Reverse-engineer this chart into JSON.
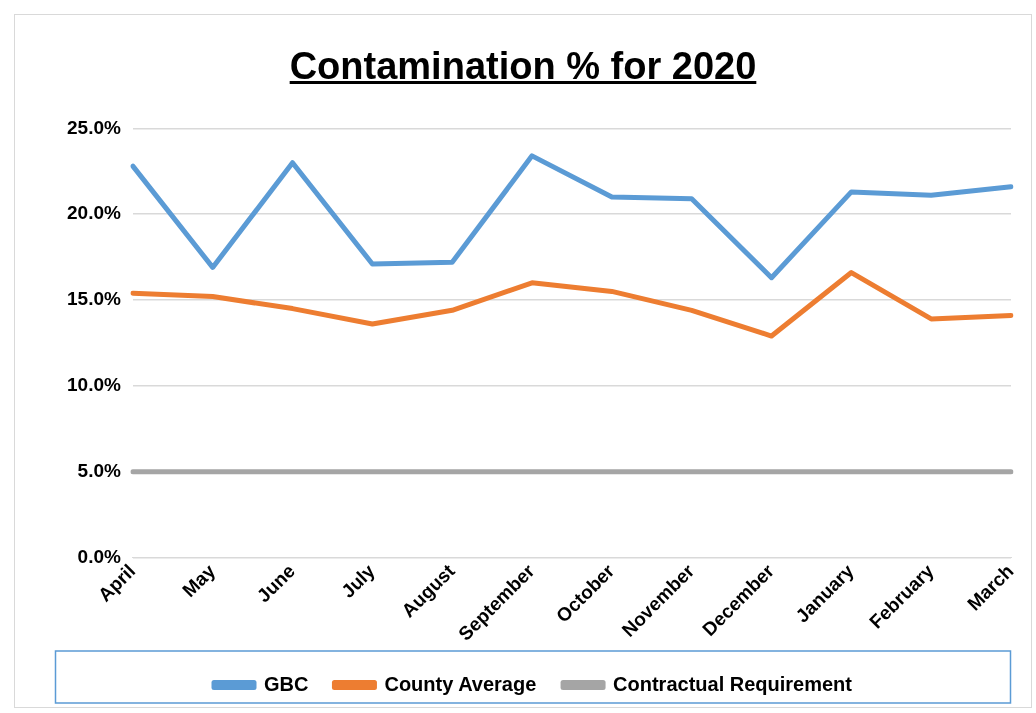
{
  "chart_data": {
    "type": "line",
    "title": "Contamination % for 2020",
    "categories": [
      "April",
      "May",
      "June",
      "July",
      "August",
      "September",
      "October",
      "November",
      "December",
      "January",
      "February",
      "March"
    ],
    "series": [
      {
        "name": "GBC",
        "color": "#5b9bd5",
        "values": [
          22.8,
          16.9,
          23.0,
          17.1,
          17.2,
          23.4,
          21.0,
          20.9,
          16.3,
          21.3,
          21.1,
          21.6
        ]
      },
      {
        "name": "County Average",
        "color": "#ed7d31",
        "values": [
          15.4,
          15.2,
          14.5,
          13.6,
          14.4,
          16.0,
          15.5,
          14.4,
          12.9,
          16.6,
          13.9,
          14.1
        ]
      },
      {
        "name": "Contractual Requirement",
        "color": "#a5a5a5",
        "values": [
          5,
          5,
          5,
          5,
          5,
          5,
          5,
          5,
          5,
          5,
          5,
          5
        ]
      }
    ],
    "ylim": [
      0,
      25
    ],
    "yticks": [
      {
        "value": 0,
        "label": "0.0%"
      },
      {
        "value": 5,
        "label": "5.0%"
      },
      {
        "value": 10,
        "label": "10.0%"
      },
      {
        "value": 15,
        "label": "15.0%"
      },
      {
        "value": 20,
        "label": "20.0%"
      },
      {
        "value": 25,
        "label": "25.0%"
      }
    ],
    "grid": "y",
    "legend": "bottom",
    "marker": "none",
    "line_style": "solid"
  }
}
